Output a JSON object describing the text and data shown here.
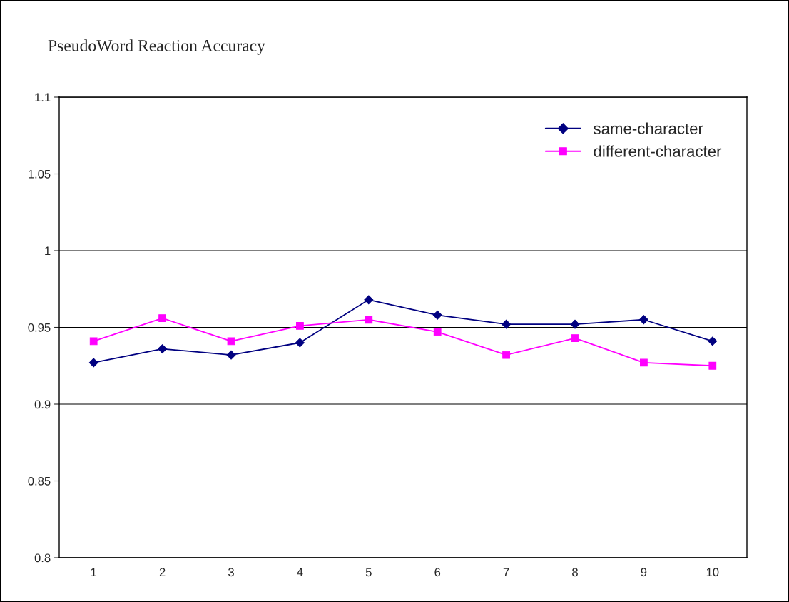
{
  "chart_data": {
    "type": "line",
    "title": "PseudoWord Reaction Accuracy",
    "categories": [
      "1",
      "2",
      "3",
      "4",
      "5",
      "6",
      "7",
      "8",
      "9",
      "10"
    ],
    "series": [
      {
        "name": "same-character",
        "color": "#000080",
        "marker": "diamond",
        "values": [
          0.927,
          0.936,
          0.932,
          0.94,
          0.968,
          0.958,
          0.952,
          0.952,
          0.955,
          0.941
        ]
      },
      {
        "name": "different-character",
        "color": "#ff00ff",
        "marker": "square",
        "values": [
          0.941,
          0.956,
          0.941,
          0.951,
          0.955,
          0.947,
          0.932,
          0.943,
          0.927,
          0.925
        ]
      }
    ],
    "ylim": [
      0.8,
      1.1
    ],
    "yticks": [
      0.8,
      0.85,
      0.9,
      0.95,
      1,
      1.05,
      1.1
    ],
    "grid": "y",
    "legend": "top right",
    "line_style": "solid"
  }
}
